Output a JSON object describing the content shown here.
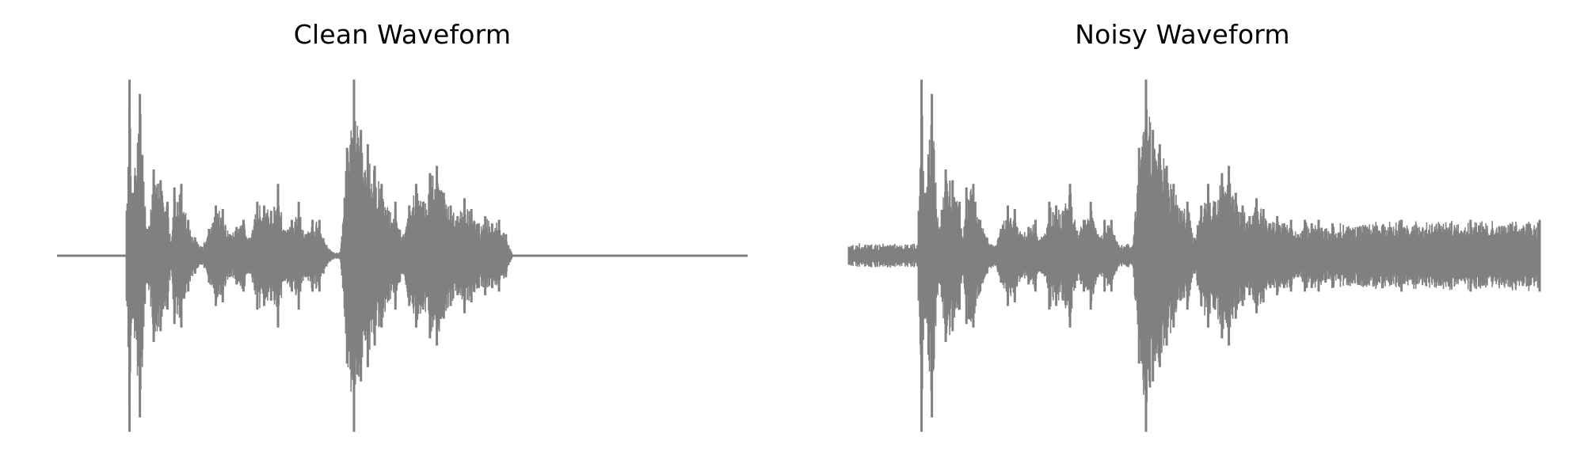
{
  "chart_data": [
    {
      "type": "line",
      "title": "Clean Waveform",
      "axes": "off",
      "grid": false,
      "legend": "none",
      "color": "#808080",
      "xlim": [
        0,
        1
      ],
      "ylim": [
        -1,
        1
      ],
      "noise_floor": 0.0,
      "x": [
        0.0,
        0.1,
        0.101,
        0.105,
        0.11,
        0.12,
        0.13,
        0.14,
        0.15,
        0.16,
        0.165,
        0.17,
        0.18,
        0.19,
        0.2,
        0.21,
        0.22,
        0.23,
        0.24,
        0.25,
        0.26,
        0.27,
        0.28,
        0.29,
        0.3,
        0.31,
        0.32,
        0.33,
        0.34,
        0.35,
        0.36,
        0.37,
        0.38,
        0.39,
        0.4,
        0.41,
        0.42,
        0.43,
        0.44,
        0.45,
        0.46,
        0.47,
        0.48,
        0.49,
        0.5,
        0.51,
        0.52,
        0.53,
        0.54,
        0.55,
        0.56,
        0.57,
        0.58,
        0.59,
        0.6,
        0.61,
        0.62,
        0.63,
        0.64,
        0.65,
        0.66,
        0.67,
        0.68,
        0.69,
        0.7,
        0.8,
        0.9,
        1.0
      ],
      "amplitude": [
        0.0,
        0.0,
        0.25,
        0.98,
        0.35,
        0.9,
        0.15,
        0.48,
        0.42,
        0.3,
        0.08,
        0.38,
        0.4,
        0.2,
        0.1,
        0.05,
        0.15,
        0.28,
        0.26,
        0.12,
        0.16,
        0.2,
        0.1,
        0.3,
        0.28,
        0.25,
        0.4,
        0.14,
        0.2,
        0.3,
        0.12,
        0.2,
        0.2,
        0.06,
        0.02,
        0.02,
        0.6,
        0.98,
        0.7,
        0.62,
        0.5,
        0.4,
        0.25,
        0.3,
        0.1,
        0.28,
        0.4,
        0.3,
        0.46,
        0.5,
        0.35,
        0.28,
        0.22,
        0.32,
        0.26,
        0.18,
        0.22,
        0.18,
        0.2,
        0.12,
        0.0,
        0.0,
        0.0,
        0.0,
        0.0,
        0.0,
        0.0,
        0.0
      ]
    },
    {
      "type": "line",
      "title": "Noisy Waveform",
      "axes": "off",
      "grid": false,
      "legend": "none",
      "color": "#808080",
      "xlim": [
        0,
        1
      ],
      "ylim": [
        -1,
        1
      ],
      "noise_floor": 0.05,
      "x": [
        0.0,
        0.1,
        0.101,
        0.105,
        0.11,
        0.12,
        0.13,
        0.14,
        0.15,
        0.16,
        0.165,
        0.17,
        0.18,
        0.19,
        0.2,
        0.21,
        0.22,
        0.23,
        0.24,
        0.25,
        0.26,
        0.27,
        0.28,
        0.29,
        0.3,
        0.31,
        0.32,
        0.33,
        0.34,
        0.35,
        0.36,
        0.37,
        0.38,
        0.39,
        0.4,
        0.41,
        0.42,
        0.43,
        0.44,
        0.45,
        0.46,
        0.47,
        0.48,
        0.49,
        0.5,
        0.51,
        0.52,
        0.53,
        0.54,
        0.55,
        0.56,
        0.57,
        0.58,
        0.59,
        0.6,
        0.61,
        0.62,
        0.63,
        0.64,
        0.65,
        0.66,
        0.67,
        0.68,
        0.69,
        0.7,
        0.8,
        0.9,
        1.0
      ],
      "amplitude": [
        0.01,
        0.02,
        0.25,
        0.98,
        0.35,
        0.9,
        0.15,
        0.48,
        0.42,
        0.3,
        0.08,
        0.38,
        0.4,
        0.2,
        0.1,
        0.05,
        0.15,
        0.28,
        0.26,
        0.12,
        0.16,
        0.2,
        0.1,
        0.3,
        0.28,
        0.25,
        0.4,
        0.14,
        0.2,
        0.3,
        0.12,
        0.2,
        0.2,
        0.06,
        0.05,
        0.05,
        0.6,
        0.98,
        0.7,
        0.62,
        0.5,
        0.4,
        0.25,
        0.3,
        0.1,
        0.28,
        0.4,
        0.3,
        0.46,
        0.5,
        0.35,
        0.28,
        0.22,
        0.32,
        0.26,
        0.18,
        0.22,
        0.18,
        0.2,
        0.12,
        0.2,
        0.18,
        0.2,
        0.15,
        0.18,
        0.2,
        0.2,
        0.2
      ]
    }
  ]
}
